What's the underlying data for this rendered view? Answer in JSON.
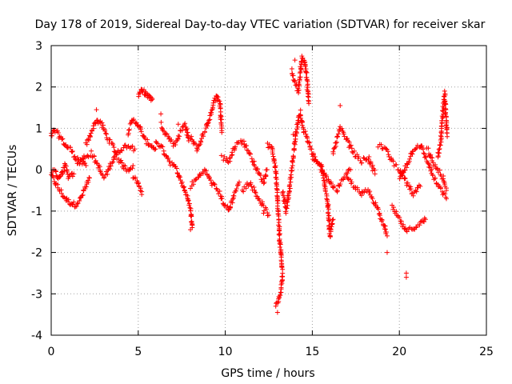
{
  "chart_data": {
    "type": "scatter",
    "title": "Day 178 of 2019, Sidereal Day-to-day VTEC variation (SDTVAR) for receiver skar",
    "xlabel": "GPS time / hours",
    "ylabel": "SDTVAR / TECUs",
    "xlim": [
      0,
      25
    ],
    "ylim": [
      -4,
      3
    ],
    "xticks": [
      0,
      5,
      10,
      15,
      20,
      25
    ],
    "yticks": [
      -4,
      -3,
      -2,
      -1,
      0,
      1,
      2,
      3
    ],
    "grid": true,
    "grid_style": "dotted",
    "marker": "+",
    "series": [
      {
        "name": "SDTVAR",
        "color": "#ff0000",
        "tracks": [
          [
            [
              0.0,
              -0.1
            ],
            [
              0.2,
              -0.3
            ],
            [
              0.5,
              -0.5
            ],
            [
              0.8,
              -0.7
            ],
            [
              1.1,
              -0.8
            ],
            [
              1.4,
              -0.85
            ],
            [
              1.7,
              -0.7
            ],
            [
              2.0,
              -0.4
            ],
            [
              2.2,
              -0.2
            ]
          ],
          [
            [
              0.0,
              0.8
            ],
            [
              0.2,
              0.95
            ],
            [
              0.5,
              0.8
            ],
            [
              0.8,
              0.6
            ],
            [
              1.1,
              0.5
            ],
            [
              1.4,
              0.3
            ],
            [
              1.7,
              0.2
            ],
            [
              2.0,
              0.1
            ]
          ],
          [
            [
              0.2,
              0.0
            ],
            [
              0.4,
              -0.2
            ],
            [
              0.6,
              -0.1
            ],
            [
              0.8,
              0.1
            ],
            [
              1.0,
              -0.2
            ],
            [
              1.3,
              -0.1
            ]
          ],
          [
            [
              2.0,
              0.6
            ],
            [
              2.3,
              0.9
            ],
            [
              2.6,
              1.2
            ],
            [
              2.9,
              1.1
            ],
            [
              3.2,
              0.8
            ],
            [
              3.5,
              0.6
            ],
            [
              3.8,
              0.3
            ],
            [
              4.1,
              0.1
            ],
            [
              4.4,
              0.0
            ],
            [
              4.7,
              0.1
            ]
          ],
          [
            [
              1.5,
              0.1
            ],
            [
              1.9,
              0.3
            ],
            [
              2.3,
              0.4
            ],
            [
              2.7,
              0.1
            ],
            [
              3.0,
              -0.2
            ],
            [
              3.3,
              0.0
            ],
            [
              3.6,
              0.3
            ],
            [
              4.0,
              0.5
            ],
            [
              4.4,
              0.6
            ],
            [
              4.8,
              0.5
            ]
          ],
          [
            [
              4.4,
              0.9
            ],
            [
              4.7,
              1.2
            ],
            [
              5.0,
              1.1
            ],
            [
              5.2,
              0.9
            ],
            [
              5.4,
              0.7
            ],
            [
              5.7,
              0.6
            ],
            [
              6.0,
              0.5
            ]
          ],
          [
            [
              5.0,
              1.8
            ],
            [
              5.2,
              1.9
            ],
            [
              5.4,
              1.85
            ],
            [
              5.6,
              1.75
            ],
            [
              5.8,
              1.7
            ]
          ],
          [
            [
              4.7,
              -0.2
            ],
            [
              5.0,
              -0.3
            ],
            [
              5.2,
              -0.6
            ]
          ],
          [
            [
              6.0,
              0.7
            ],
            [
              6.4,
              0.5
            ],
            [
              6.8,
              0.2
            ],
            [
              7.2,
              0.0
            ],
            [
              7.6,
              -0.4
            ],
            [
              8.0,
              -0.9
            ],
            [
              8.1,
              -1.4
            ]
          ],
          [
            [
              6.3,
              1.1
            ],
            [
              6.7,
              0.8
            ],
            [
              7.1,
              0.6
            ],
            [
              7.4,
              0.9
            ],
            [
              7.7,
              1.1
            ],
            [
              7.9,
              0.7
            ]
          ],
          [
            [
              8.0,
              0.8
            ],
            [
              8.4,
              0.5
            ],
            [
              8.8,
              0.9
            ],
            [
              9.2,
              1.4
            ],
            [
              9.5,
              1.8
            ],
            [
              9.7,
              1.6
            ],
            [
              9.8,
              0.9
            ]
          ],
          [
            [
              8.0,
              -0.4
            ],
            [
              8.4,
              -0.2
            ],
            [
              8.8,
              0.0
            ],
            [
              9.2,
              -0.3
            ],
            [
              9.6,
              -0.5
            ],
            [
              9.9,
              -0.8
            ],
            [
              10.2,
              -1.0
            ],
            [
              10.5,
              -0.6
            ],
            [
              10.8,
              -0.3
            ]
          ],
          [
            [
              9.8,
              0.3
            ],
            [
              10.2,
              0.2
            ],
            [
              10.6,
              0.6
            ],
            [
              11.0,
              0.7
            ],
            [
              11.4,
              0.4
            ],
            [
              11.8,
              0.0
            ],
            [
              12.2,
              -0.3
            ],
            [
              12.4,
              0.0
            ]
          ],
          [
            [
              11.0,
              -0.5
            ],
            [
              11.4,
              -0.3
            ],
            [
              11.8,
              -0.6
            ],
            [
              12.2,
              -0.9
            ],
            [
              12.5,
              -1.1
            ]
          ],
          [
            [
              12.4,
              0.6
            ],
            [
              12.7,
              0.5
            ],
            [
              12.9,
              0.0
            ],
            [
              13.0,
              -0.8
            ],
            [
              13.1,
              -1.5
            ],
            [
              13.2,
              -2.1
            ],
            [
              13.3,
              -2.6
            ],
            [
              13.1,
              -3.1
            ],
            [
              12.9,
              -3.3
            ]
          ],
          [
            [
              13.3,
              -0.5
            ],
            [
              13.5,
              -1.0
            ],
            [
              13.7,
              -0.4
            ],
            [
              13.9,
              0.3
            ],
            [
              14.1,
              1.0
            ],
            [
              14.3,
              1.4
            ],
            [
              14.5,
              0.9
            ]
          ],
          [
            [
              13.8,
              2.4
            ],
            [
              14.0,
              2.1
            ],
            [
              14.2,
              1.9
            ],
            [
              14.4,
              2.7
            ],
            [
              14.6,
              2.6
            ],
            [
              14.8,
              1.6
            ]
          ],
          [
            [
              14.6,
              0.9
            ],
            [
              14.9,
              0.5
            ],
            [
              15.2,
              0.2
            ],
            [
              15.6,
              0.0
            ],
            [
              16.0,
              -0.3
            ],
            [
              16.4,
              -0.5
            ],
            [
              16.8,
              -0.2
            ],
            [
              17.2,
              0.0
            ]
          ],
          [
            [
              15.0,
              0.3
            ],
            [
              15.5,
              0.1
            ],
            [
              15.9,
              -0.8
            ],
            [
              16.0,
              -1.6
            ],
            [
              16.2,
              -1.2
            ]
          ],
          [
            [
              16.2,
              0.4
            ],
            [
              16.6,
              1.0
            ],
            [
              17.0,
              0.7
            ],
            [
              17.4,
              0.4
            ],
            [
              17.8,
              0.2
            ],
            [
              18.2,
              0.3
            ],
            [
              18.6,
              -0.1
            ]
          ],
          [
            [
              17.0,
              -0.2
            ],
            [
              17.4,
              -0.4
            ],
            [
              17.8,
              -0.6
            ],
            [
              18.2,
              -0.5
            ],
            [
              18.6,
              -0.8
            ],
            [
              19.0,
              -1.2
            ],
            [
              19.3,
              -1.6
            ]
          ],
          [
            [
              18.8,
              0.6
            ],
            [
              19.2,
              0.5
            ],
            [
              19.6,
              0.2
            ],
            [
              20.0,
              0.0
            ],
            [
              20.4,
              -0.3
            ],
            [
              20.8,
              -0.6
            ],
            [
              21.2,
              -0.4
            ]
          ],
          [
            [
              19.6,
              -0.9
            ],
            [
              20.0,
              -1.2
            ],
            [
              20.4,
              -1.5
            ],
            [
              20.8,
              -1.4
            ],
            [
              21.2,
              -1.3
            ],
            [
              21.5,
              -1.2
            ]
          ],
          [
            [
              20.0,
              -0.2
            ],
            [
              20.4,
              0.1
            ],
            [
              20.8,
              0.5
            ],
            [
              21.2,
              0.6
            ],
            [
              21.5,
              0.3
            ],
            [
              21.8,
              0.0
            ],
            [
              22.1,
              -0.3
            ],
            [
              22.4,
              -0.5
            ],
            [
              22.7,
              -0.7
            ]
          ],
          [
            [
              21.6,
              0.5
            ],
            [
              21.9,
              0.2
            ],
            [
              22.2,
              0.0
            ],
            [
              22.5,
              -0.2
            ],
            [
              22.7,
              -0.5
            ]
          ],
          [
            [
              22.2,
              0.3
            ],
            [
              22.4,
              0.8
            ],
            [
              22.5,
              1.4
            ],
            [
              22.6,
              1.8
            ],
            [
              22.7,
              1.1
            ],
            [
              22.75,
              0.8
            ]
          ]
        ],
        "outliers": [
          [
            0.1,
            0.0
          ],
          [
            2.6,
            1.45
          ],
          [
            6.3,
            1.35
          ],
          [
            8.0,
            -1.45
          ],
          [
            13.0,
            -3.45
          ],
          [
            14.0,
            2.65
          ],
          [
            19.3,
            -2.0
          ],
          [
            20.4,
            -2.5
          ],
          [
            20.4,
            -2.6
          ],
          [
            22.6,
            1.9
          ],
          [
            13.9,
            0.85
          ],
          [
            12.2,
            -1.05
          ],
          [
            16.6,
            1.55
          ],
          [
            7.3,
            1.1
          ]
        ]
      }
    ]
  }
}
